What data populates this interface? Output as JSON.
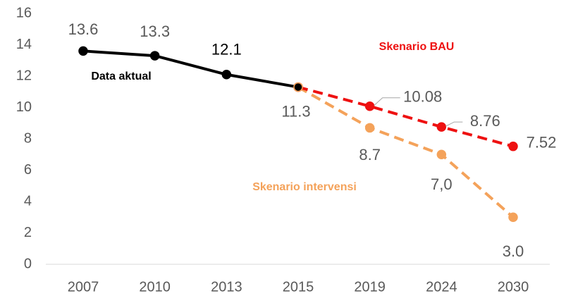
{
  "chart_data": {
    "type": "line",
    "categories": [
      "2007",
      "2010",
      "2013",
      "2015",
      "2019",
      "2024",
      "2030"
    ],
    "series": [
      {
        "name": "Skenario intervensi",
        "color": "#f4a25a",
        "dashed": true,
        "values": [
          null,
          null,
          null,
          11.3,
          8.7,
          7.0,
          3.0
        ],
        "value_labels": [
          null,
          null,
          null,
          null,
          "8.7",
          "7,0",
          "3.0"
        ]
      },
      {
        "name": "Skenario BAU",
        "color": "#ee1111",
        "dashed": true,
        "values": [
          null,
          null,
          null,
          11.3,
          10.08,
          8.76,
          7.52
        ],
        "value_labels": [
          null,
          null,
          null,
          null,
          "10.08",
          "8.76",
          "7.52"
        ]
      },
      {
        "name": "Data aktual",
        "color": "#000000",
        "dashed": false,
        "values": [
          13.6,
          13.3,
          12.1,
          11.3,
          null,
          null,
          null
        ],
        "value_labels": [
          "13.6",
          "13.3",
          "12.1",
          "11.3",
          null,
          null,
          null
        ]
      }
    ],
    "ylim": [
      0,
      16
    ],
    "yticks": [
      0,
      2,
      4,
      6,
      8,
      10,
      12,
      14,
      16
    ],
    "grid": false
  }
}
